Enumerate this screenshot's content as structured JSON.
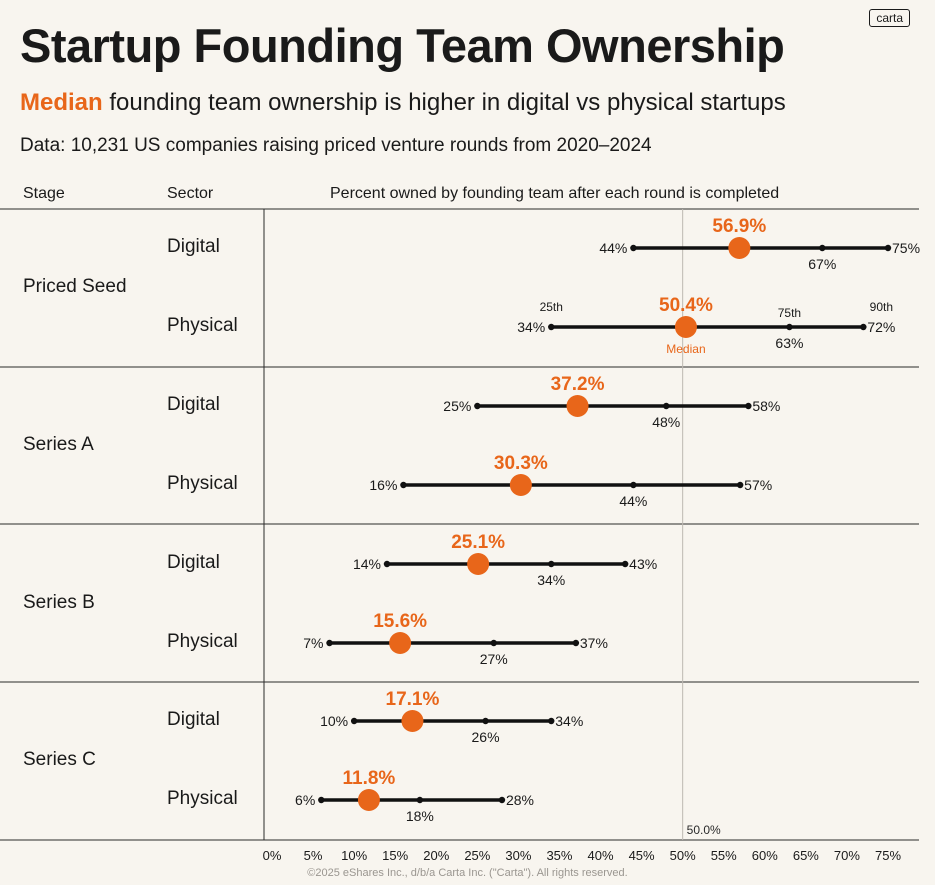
{
  "header": {
    "logo": "carta",
    "title": "Startup Founding Team Ownership",
    "subtitle_accent": "Median",
    "subtitle_rest": " founding team ownership is higher in digital vs physical startups",
    "data_note": "Data: 10,231 US companies raising priced venture rounds from 2020–2024"
  },
  "columns": {
    "stage": "Stage",
    "sector": "Sector",
    "chart": "Percent owned by founding team after each round is completed"
  },
  "stages": [
    "Priced Seed",
    "Series A",
    "Series B",
    "Series C"
  ],
  "legend": {
    "p25": "25th",
    "p75": "75th",
    "p90": "90th",
    "median": "Median"
  },
  "reference_line_label": "50.0%",
  "footer": "©2025 eShares Inc., d/b/a Carta Inc. (\"Carta\"). All rights reserved.",
  "colors": {
    "accent": "#e8661a",
    "line": "#111111",
    "background": "#f8f5ef"
  },
  "chart_data": {
    "type": "dot-range",
    "xlabel": "Percent owned by founding team after each round is completed",
    "xlim": [
      0,
      75
    ],
    "xticks": [
      "0%",
      "5%",
      "10%",
      "15%",
      "20%",
      "25%",
      "30%",
      "35%",
      "40%",
      "45%",
      "50%",
      "55%",
      "60%",
      "65%",
      "70%",
      "75%"
    ],
    "reference_line": 50.0,
    "rows": [
      {
        "stage": "Priced Seed",
        "sector": "Digital",
        "p10": 44,
        "median": 56.9,
        "p75": 67,
        "p90": 75,
        "p10_label": "44%",
        "median_label": "56.9%",
        "p75_label": "67%",
        "p90_label": "75%"
      },
      {
        "stage": "Priced Seed",
        "sector": "Physical",
        "p10": 34,
        "median": 50.4,
        "p75": 63,
        "p90": 72,
        "p10_label": "34%",
        "median_label": "50.4%",
        "p75_label": "63%",
        "p90_label": "72%"
      },
      {
        "stage": "Series A",
        "sector": "Digital",
        "p10": 25,
        "median": 37.2,
        "p75": 48,
        "p90": 58,
        "p10_label": "25%",
        "median_label": "37.2%",
        "p75_label": "48%",
        "p90_label": "58%"
      },
      {
        "stage": "Series A",
        "sector": "Physical",
        "p10": 16,
        "median": 30.3,
        "p75": 44,
        "p90": 57,
        "p10_label": "16%",
        "median_label": "30.3%",
        "p75_label": "44%",
        "p90_label": "57%"
      },
      {
        "stage": "Series B",
        "sector": "Digital",
        "p10": 14,
        "median": 25.1,
        "p75": 34,
        "p90": 43,
        "p10_label": "14%",
        "median_label": "25.1%",
        "p75_label": "34%",
        "p90_label": "43%"
      },
      {
        "stage": "Series B",
        "sector": "Physical",
        "p10": 7,
        "median": 15.6,
        "p75": 27,
        "p90": 37,
        "p10_label": "7%",
        "median_label": "15.6%",
        "p75_label": "27%",
        "p90_label": "37%"
      },
      {
        "stage": "Series C",
        "sector": "Digital",
        "p10": 10,
        "median": 17.1,
        "p75": 26,
        "p90": 34,
        "p10_label": "10%",
        "median_label": "17.1%",
        "p75_label": "26%",
        "p90_label": "34%"
      },
      {
        "stage": "Series C",
        "sector": "Physical",
        "p10": 6,
        "median": 11.8,
        "p75": 18,
        "p90": 28,
        "p10_label": "6%",
        "median_label": "11.8%",
        "p75_label": "18%",
        "p90_label": "28%"
      }
    ]
  }
}
